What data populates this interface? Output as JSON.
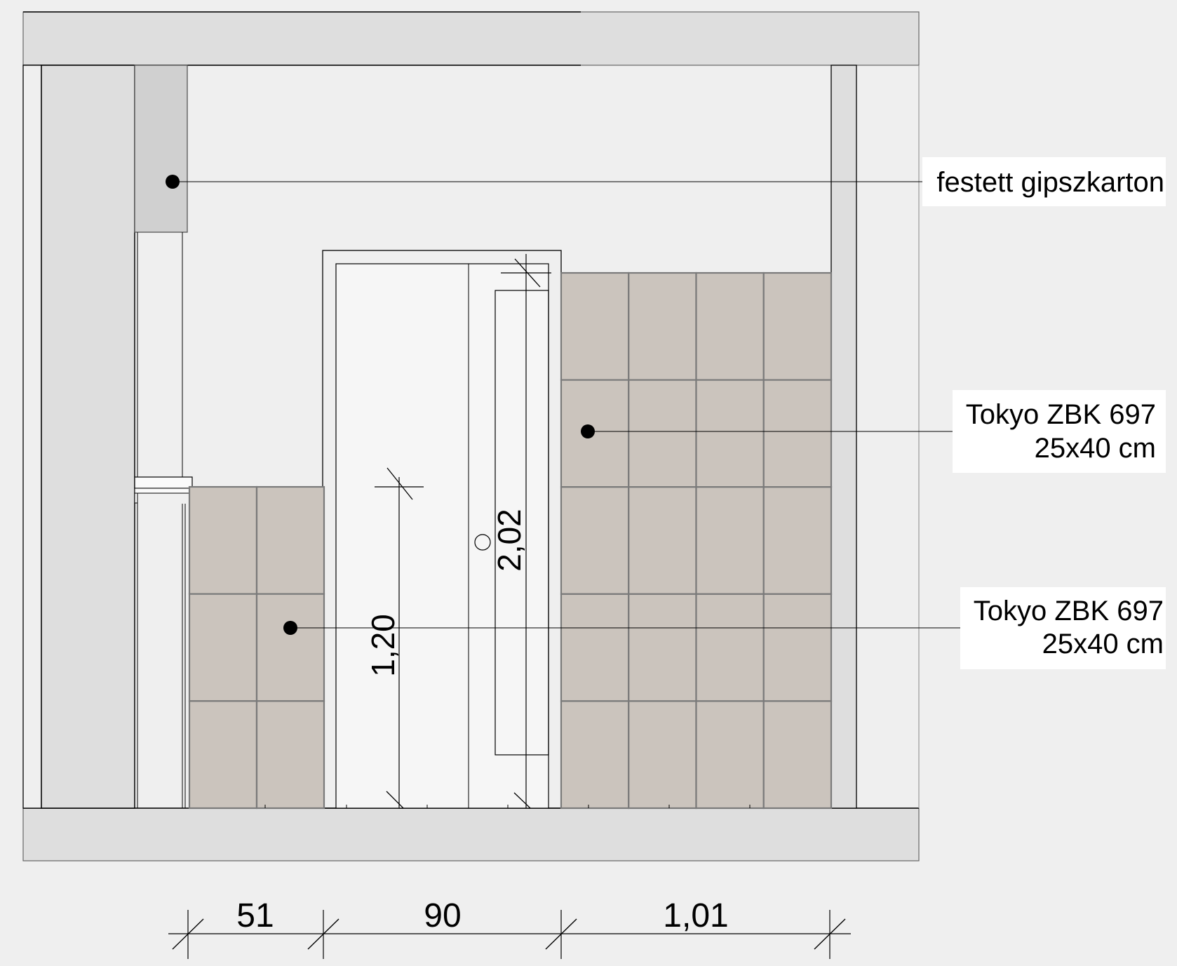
{
  "callouts": [
    {
      "id": "drywall",
      "lines": [
        "festett gipszkarton"
      ]
    },
    {
      "id": "tile-right",
      "lines": [
        "Tokyo ZBK 697",
        "25x40 cm"
      ]
    },
    {
      "id": "tile-left",
      "lines": [
        "Tokyo ZBK 697",
        "25x40 cm"
      ]
    }
  ],
  "dimensions": {
    "horizontal": [
      "51",
      "90",
      "1,01"
    ],
    "wainscot_height": "1,20",
    "door_height": "2,02"
  },
  "colors": {
    "background": "#efefef",
    "slab": "#dedede",
    "drywall_box": "#d0d0d0",
    "tile": "#cbc4bd",
    "tile_joint": "#7a7a7a",
    "line": "#000000"
  }
}
